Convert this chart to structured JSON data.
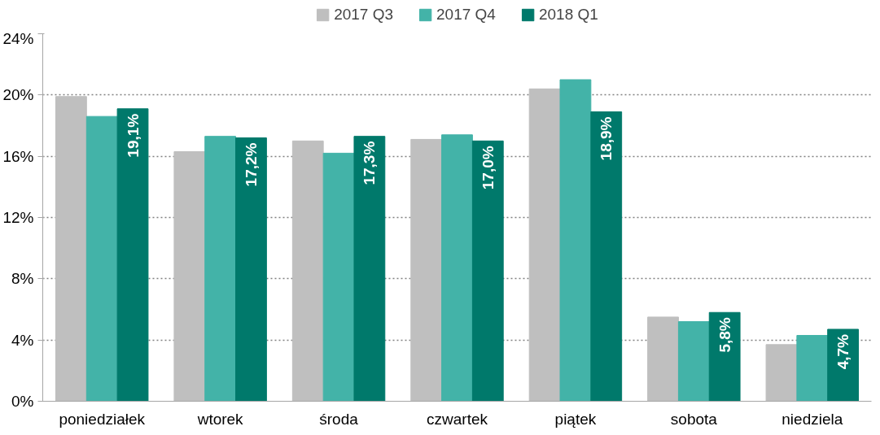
{
  "chart_data": {
    "type": "bar",
    "categories": [
      "poniedziałek",
      "wtorek",
      "środa",
      "czwartek",
      "piątek",
      "sobota",
      "niedziela"
    ],
    "series": [
      {
        "name": "2017 Q3",
        "color": "#bfbfbf",
        "values": [
          19.9,
          16.3,
          17.0,
          17.1,
          20.4,
          5.5,
          3.7
        ]
      },
      {
        "name": "2017 Q4",
        "color": "#43b3a8",
        "values": [
          18.6,
          17.3,
          16.2,
          17.4,
          21.0,
          5.2,
          4.3
        ]
      },
      {
        "name": "2018 Q1",
        "color": "#00796b",
        "values": [
          19.1,
          17.2,
          17.3,
          17.0,
          18.9,
          5.8,
          4.7
        ],
        "value_labels": [
          "19,1%",
          "17,2%",
          "17,3%",
          "17,0%",
          "18,9%",
          "5,8%",
          "4,7%"
        ]
      }
    ],
    "ylim": [
      0,
      24
    ],
    "yticks": [
      {
        "value": 0,
        "label": "0%"
      },
      {
        "value": 4,
        "label": "4%"
      },
      {
        "value": 8,
        "label": "8%"
      },
      {
        "value": 12,
        "label": "12%"
      },
      {
        "value": 16,
        "label": "16%"
      },
      {
        "value": 20,
        "label": "20%"
      },
      {
        "value": 24,
        "label": "24%"
      }
    ],
    "grid": "y",
    "legend": "top"
  }
}
